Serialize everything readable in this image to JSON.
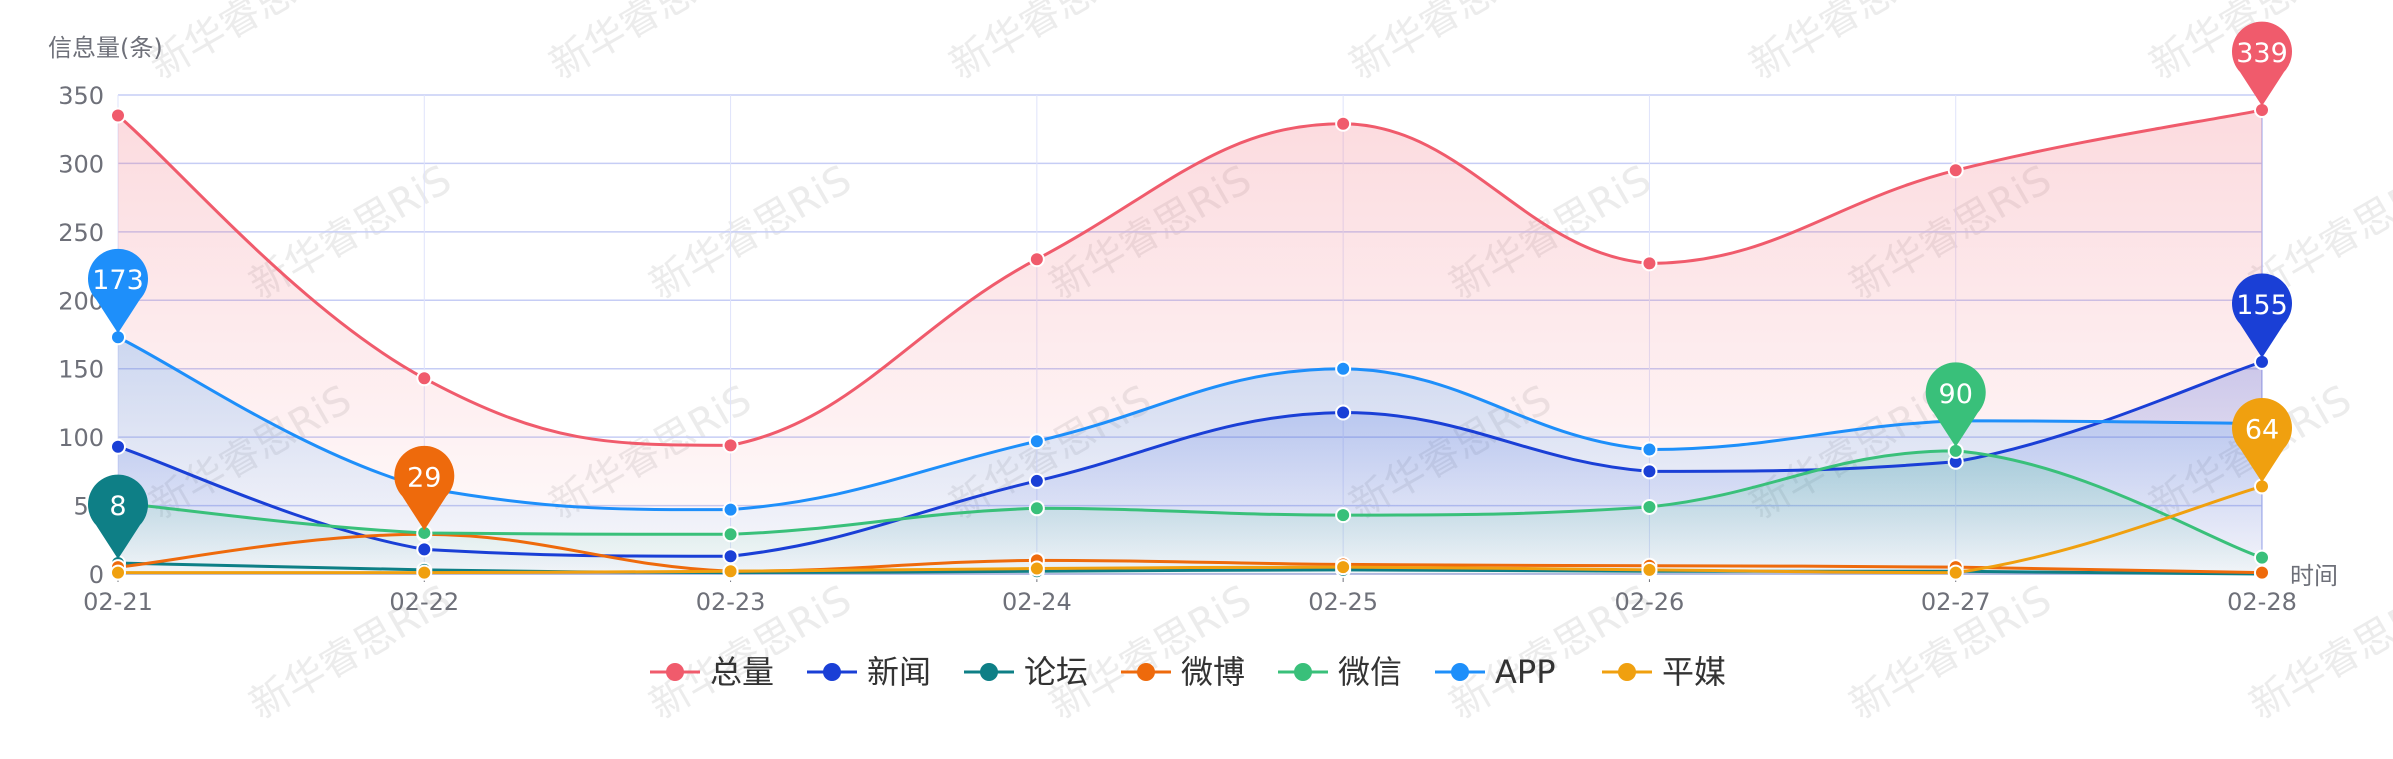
{
  "watermark": "新华睿思RiS",
  "chart_data": {
    "type": "line",
    "ylabel": "信息量(条)",
    "xlabel": "时间",
    "ylim": [
      0,
      350
    ],
    "yticks": [
      "0",
      "50",
      "100",
      "150",
      "200",
      "250",
      "300",
      "350"
    ],
    "categories": [
      "02-21",
      "02-22",
      "02-23",
      "02-24",
      "02-25",
      "02-26",
      "02-27",
      "02-28"
    ],
    "smooth": true,
    "grid": true,
    "legend_position": "bottom-center",
    "series": [
      {
        "name": "总量",
        "color": "#f05b6c",
        "area": true,
        "values": [
          335,
          143,
          94,
          230,
          329,
          227,
          295,
          339
        ],
        "pin": {
          "index": 7,
          "label": "339"
        }
      },
      {
        "name": "新闻",
        "color": "#1a3fd6",
        "area": true,
        "values": [
          93,
          18,
          13,
          68,
          118,
          75,
          82,
          155
        ],
        "pin": {
          "index": 7,
          "label": "155"
        }
      },
      {
        "name": "论坛",
        "color": "#0e7f86",
        "area": false,
        "values": [
          8,
          3,
          1,
          2,
          3,
          2,
          2,
          0
        ],
        "pin": {
          "index": 0,
          "label": "8"
        }
      },
      {
        "name": "微博",
        "color": "#ee6a0c",
        "area": false,
        "values": [
          5,
          29,
          2,
          10,
          7,
          6,
          5,
          1
        ],
        "pin": {
          "index": 1,
          "label": "29"
        }
      },
      {
        "name": "微信",
        "color": "#39c07a",
        "area": true,
        "values": [
          52,
          30,
          29,
          48,
          43,
          49,
          90,
          12
        ],
        "pin": {
          "index": 6,
          "label": "90"
        }
      },
      {
        "name": "APP",
        "color": "#1e8ffa",
        "area": true,
        "values": [
          173,
          63,
          47,
          97,
          150,
          91,
          112,
          110
        ],
        "pin": {
          "index": 0,
          "label": "173"
        }
      },
      {
        "name": "平媒",
        "color": "#f0a00f",
        "area": false,
        "values": [
          1,
          1,
          2,
          4,
          5,
          3,
          1,
          64
        ],
        "pin": {
          "index": 7,
          "label": "64"
        }
      }
    ]
  }
}
